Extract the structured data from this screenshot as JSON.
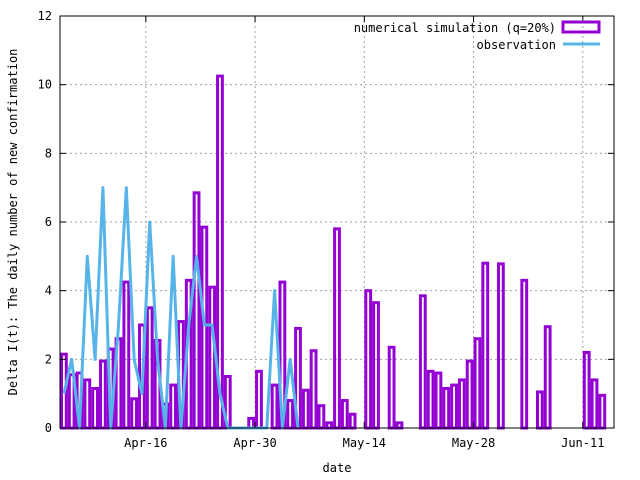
{
  "chart_data": {
    "type": "bar",
    "xlabel": "date",
    "ylabel": "Delta I(t): The daily number of new confirmation",
    "ylim": [
      0,
      12
    ],
    "yticks": [
      0,
      2,
      4,
      6,
      8,
      10,
      12
    ],
    "xlim": [
      "2020-04-05",
      "2020-06-15"
    ],
    "xticks": [
      {
        "date": "2020-04-16",
        "label": "Apr-16"
      },
      {
        "date": "2020-04-30",
        "label": "Apr-30"
      },
      {
        "date": "2020-05-14",
        "label": "May-14"
      },
      {
        "date": "2020-05-28",
        "label": "May-28"
      },
      {
        "date": "2020-06-11",
        "label": "Jun-11"
      }
    ],
    "grid": true,
    "legend_position": "top-right",
    "series": [
      {
        "name": "numerical simulation (q=20%)",
        "kind": "bar",
        "color": "#9400d3",
        "points": [
          [
            "2020-04-05",
            2.15
          ],
          [
            "2020-04-06",
            1.55
          ],
          [
            "2020-04-07",
            1.6
          ],
          [
            "2020-04-08",
            1.4
          ],
          [
            "2020-04-09",
            1.15
          ],
          [
            "2020-04-10",
            1.95
          ],
          [
            "2020-04-11",
            2.3
          ],
          [
            "2020-04-12",
            2.6
          ],
          [
            "2020-04-13",
            4.25
          ],
          [
            "2020-04-14",
            0.85
          ],
          [
            "2020-04-15",
            3.0
          ],
          [
            "2020-04-16",
            3.5
          ],
          [
            "2020-04-17",
            2.55
          ],
          [
            "2020-04-18",
            0.7
          ],
          [
            "2020-04-19",
            1.25
          ],
          [
            "2020-04-20",
            3.1
          ],
          [
            "2020-04-21",
            4.3
          ],
          [
            "2020-04-22",
            6.85
          ],
          [
            "2020-04-23",
            5.85
          ],
          [
            "2020-04-24",
            4.1
          ],
          [
            "2020-04-25",
            10.25
          ],
          [
            "2020-04-26",
            1.5
          ],
          [
            "2020-04-29",
            0.28
          ],
          [
            "2020-04-30",
            1.65
          ],
          [
            "2020-05-02",
            1.25
          ],
          [
            "2020-05-03",
            4.25
          ],
          [
            "2020-05-04",
            0.8
          ],
          [
            "2020-05-05",
            2.9
          ],
          [
            "2020-05-06",
            1.1
          ],
          [
            "2020-05-07",
            2.25
          ],
          [
            "2020-05-08",
            0.65
          ],
          [
            "2020-05-09",
            0.15
          ],
          [
            "2020-05-10",
            5.8
          ],
          [
            "2020-05-11",
            0.8
          ],
          [
            "2020-05-12",
            0.4
          ],
          [
            "2020-05-14",
            4.0
          ],
          [
            "2020-05-15",
            3.65
          ],
          [
            "2020-05-17",
            2.35
          ],
          [
            "2020-05-18",
            0.15
          ],
          [
            "2020-05-21",
            3.85
          ],
          [
            "2020-05-22",
            1.65
          ],
          [
            "2020-05-23",
            1.6
          ],
          [
            "2020-05-24",
            1.15
          ],
          [
            "2020-05-25",
            1.25
          ],
          [
            "2020-05-26",
            1.4
          ],
          [
            "2020-05-27",
            1.95
          ],
          [
            "2020-05-28",
            2.6
          ],
          [
            "2020-05-29",
            4.8
          ],
          [
            "2020-05-31",
            4.78
          ],
          [
            "2020-06-03",
            4.3
          ],
          [
            "2020-06-05",
            1.05
          ],
          [
            "2020-06-06",
            2.95
          ],
          [
            "2020-06-11",
            2.2
          ],
          [
            "2020-06-12",
            1.4
          ],
          [
            "2020-06-13",
            0.95
          ]
        ]
      },
      {
        "name": "observation",
        "kind": "line",
        "color": "#56b4e9",
        "points": [
          [
            "2020-04-05",
            1.0
          ],
          [
            "2020-04-06",
            2.0
          ],
          [
            "2020-04-07",
            0.0
          ],
          [
            "2020-04-08",
            5.0
          ],
          [
            "2020-04-09",
            2.0
          ],
          [
            "2020-04-10",
            7.0
          ],
          [
            "2020-04-11",
            0.0
          ],
          [
            "2020-04-12",
            3.0
          ],
          [
            "2020-04-13",
            7.0
          ],
          [
            "2020-04-14",
            2.0
          ],
          [
            "2020-04-15",
            1.0
          ],
          [
            "2020-04-16",
            6.0
          ],
          [
            "2020-04-17",
            2.0
          ],
          [
            "2020-04-18",
            0.0
          ],
          [
            "2020-04-19",
            5.0
          ],
          [
            "2020-04-20",
            0.0
          ],
          [
            "2020-04-21",
            3.0
          ],
          [
            "2020-04-22",
            5.0
          ],
          [
            "2020-04-23",
            3.0
          ],
          [
            "2020-04-24",
            3.0
          ],
          [
            "2020-04-25",
            1.0
          ],
          [
            "2020-04-26",
            0.0
          ],
          [
            "2020-04-27",
            0.0
          ],
          [
            "2020-04-28",
            0.0
          ],
          [
            "2020-04-29",
            0.0
          ],
          [
            "2020-04-30",
            0.0
          ],
          [
            "2020-05-01",
            0.0
          ],
          [
            "2020-05-02",
            4.0
          ],
          [
            "2020-05-03",
            0.0
          ],
          [
            "2020-05-04",
            2.0
          ],
          [
            "2020-05-05",
            0.0
          ]
        ]
      }
    ]
  }
}
